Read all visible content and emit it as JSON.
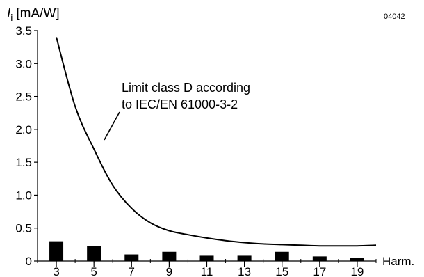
{
  "chart_data": {
    "type": "bar",
    "figure_id": "04042",
    "ylabel_symbol": "I",
    "ylabel_subscript": "i",
    "ylabel_unit": "[mA/W]",
    "xlabel": "Harm.",
    "ylim": [
      0,
      3.5
    ],
    "yticks": [
      "0",
      "0.5",
      "1.0",
      "1.5",
      "2.0",
      "2.5",
      "3.0",
      "3.5"
    ],
    "xlim": [
      2,
      20
    ],
    "xticks": [
      "3",
      "5",
      "7",
      "9",
      "11",
      "13",
      "15",
      "17",
      "19"
    ],
    "bars": {
      "x": [
        3,
        5,
        7,
        9,
        11,
        13,
        15,
        17,
        19
      ],
      "values": [
        0.3,
        0.23,
        0.1,
        0.14,
        0.08,
        0.08,
        0.14,
        0.07,
        0.05
      ]
    },
    "limit_curve": {
      "x": [
        3,
        4,
        5,
        6,
        7,
        8,
        9,
        10,
        11,
        12,
        13,
        14,
        15,
        16,
        17,
        18,
        19,
        20
      ],
      "y": [
        3.4,
        2.35,
        1.7,
        1.15,
        0.8,
        0.58,
        0.46,
        0.4,
        0.35,
        0.31,
        0.28,
        0.26,
        0.25,
        0.24,
        0.23,
        0.23,
        0.23,
        0.24
      ]
    },
    "annotation": {
      "line1": "Limit class D according",
      "line2": "to IEC/EN 61000-3-2"
    }
  }
}
